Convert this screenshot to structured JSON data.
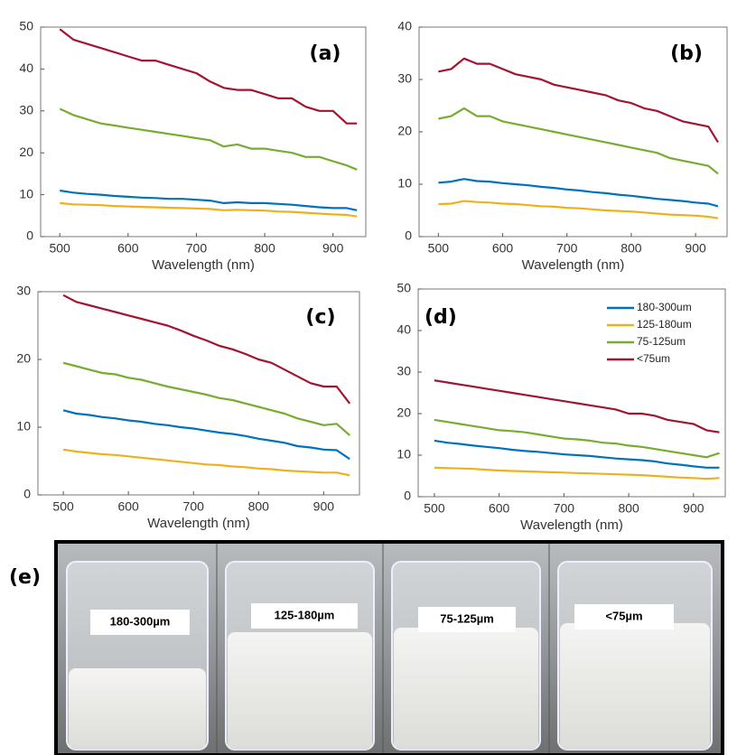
{
  "chart_data": [
    {
      "type": "line",
      "label": "(a)",
      "xlabel": "Wavelength (nm)",
      "x": [
        500,
        520,
        540,
        560,
        580,
        600,
        620,
        640,
        660,
        680,
        700,
        720,
        740,
        760,
        780,
        800,
        820,
        840,
        860,
        880,
        900,
        920,
        935
      ],
      "xlim": [
        472,
        948
      ],
      "xticks": [
        500,
        600,
        700,
        800,
        900
      ],
      "ylim": [
        0,
        50
      ],
      "yticks": [
        0,
        10,
        20,
        30,
        40,
        50
      ],
      "series": [
        {
          "color": "#0072bd",
          "values": [
            11,
            10.5,
            10.2,
            10,
            9.7,
            9.5,
            9.3,
            9.2,
            9,
            9,
            8.8,
            8.6,
            8,
            8.2,
            8,
            8,
            7.8,
            7.6,
            7.3,
            7,
            6.8,
            6.8,
            6.3
          ]
        },
        {
          "color": "#edb120",
          "values": [
            8,
            7.7,
            7.6,
            7.5,
            7.3,
            7.2,
            7.1,
            7,
            6.9,
            6.8,
            6.7,
            6.6,
            6.3,
            6.4,
            6.3,
            6.2,
            6,
            5.9,
            5.7,
            5.5,
            5.3,
            5.2,
            4.8
          ]
        },
        {
          "color": "#77ac30",
          "values": [
            30.5,
            29,
            28,
            27,
            26.5,
            26,
            25.5,
            25,
            24.5,
            24,
            23.5,
            23,
            21.5,
            22,
            21,
            21,
            20.5,
            20,
            19,
            19,
            18,
            17,
            16
          ]
        },
        {
          "color": "#a2142f",
          "values": [
            49.5,
            47,
            46,
            45,
            44,
            43,
            42,
            42,
            41,
            40,
            39,
            37,
            35.5,
            35,
            35,
            34,
            33,
            33,
            31,
            30,
            30,
            27,
            27
          ]
        }
      ]
    },
    {
      "type": "line",
      "label": "(b)",
      "xlabel": "Wavelength (nm)",
      "x": [
        500,
        520,
        540,
        560,
        580,
        600,
        620,
        640,
        660,
        680,
        700,
        720,
        740,
        760,
        780,
        800,
        820,
        840,
        860,
        880,
        900,
        920,
        935
      ],
      "xlim": [
        470,
        949
      ],
      "xticks": [
        500,
        600,
        700,
        800,
        900
      ],
      "ylim": [
        0,
        40
      ],
      "yticks": [
        0,
        10,
        20,
        30,
        40
      ],
      "series": [
        {
          "color": "#0072bd",
          "values": [
            10.3,
            10.5,
            11,
            10.6,
            10.5,
            10.2,
            10,
            9.8,
            9.5,
            9.3,
            9,
            8.8,
            8.5,
            8.3,
            8,
            7.8,
            7.5,
            7.2,
            7,
            6.8,
            6.5,
            6.3,
            5.8
          ]
        },
        {
          "color": "#edb120",
          "values": [
            6.2,
            6.3,
            6.8,
            6.6,
            6.5,
            6.3,
            6.2,
            6,
            5.8,
            5.7,
            5.5,
            5.4,
            5.2,
            5,
            4.9,
            4.8,
            4.6,
            4.4,
            4.2,
            4.1,
            4,
            3.8,
            3.5
          ]
        },
        {
          "color": "#77ac30",
          "values": [
            22.5,
            23,
            24.5,
            23,
            23,
            22,
            21.5,
            21,
            20.5,
            20,
            19.5,
            19,
            18.5,
            18,
            17.5,
            17,
            16.5,
            16,
            15,
            14.5,
            14,
            13.5,
            12
          ]
        },
        {
          "color": "#a2142f",
          "values": [
            31.5,
            32,
            34,
            33,
            33,
            32,
            31,
            30.5,
            30,
            29,
            28.5,
            28,
            27.5,
            27,
            26,
            25.5,
            24.5,
            24,
            23,
            22,
            21.5,
            21,
            18
          ]
        }
      ]
    },
    {
      "type": "line",
      "label": "(c)",
      "xlabel": "Wavelength (nm)",
      "x": [
        500,
        520,
        540,
        560,
        580,
        600,
        620,
        640,
        660,
        680,
        700,
        720,
        740,
        760,
        780,
        800,
        820,
        840,
        860,
        880,
        900,
        920,
        940
      ],
      "xlim": [
        461,
        955
      ],
      "xticks": [
        500,
        600,
        700,
        800,
        900
      ],
      "ylim": [
        0,
        30
      ],
      "yticks": [
        0,
        10,
        20,
        30
      ],
      "series": [
        {
          "color": "#0072bd",
          "values": [
            12.5,
            12,
            11.8,
            11.5,
            11.3,
            11,
            10.8,
            10.5,
            10.3,
            10,
            9.8,
            9.5,
            9.2,
            9,
            8.7,
            8.3,
            8,
            7.7,
            7.2,
            7,
            6.7,
            6.6,
            5.3
          ]
        },
        {
          "color": "#edb120",
          "values": [
            6.7,
            6.4,
            6.2,
            6,
            5.9,
            5.7,
            5.5,
            5.3,
            5.1,
            4.9,
            4.7,
            4.5,
            4.4,
            4.2,
            4.1,
            3.9,
            3.8,
            3.6,
            3.5,
            3.4,
            3.3,
            3.3,
            2.9
          ]
        },
        {
          "color": "#77ac30",
          "values": [
            19.5,
            19,
            18.5,
            18,
            17.8,
            17.3,
            17,
            16.5,
            16,
            15.6,
            15.2,
            14.8,
            14.3,
            14,
            13.5,
            13,
            12.5,
            12,
            11.3,
            10.8,
            10.3,
            10.5,
            8.8
          ]
        },
        {
          "color": "#a2142f",
          "values": [
            29.5,
            28.5,
            28,
            27.5,
            27,
            26.5,
            26,
            25.5,
            25,
            24.3,
            23.5,
            22.8,
            22,
            21.5,
            20.8,
            20,
            19.5,
            18.5,
            17.5,
            16.5,
            16,
            16,
            13.5
          ]
        }
      ]
    },
    {
      "type": "line",
      "label": "(d)",
      "xlabel": "Wavelength (nm)",
      "legend": "upper right",
      "x": [
        500,
        520,
        540,
        560,
        580,
        600,
        620,
        640,
        660,
        680,
        700,
        720,
        740,
        760,
        780,
        800,
        820,
        840,
        860,
        880,
        900,
        920,
        940
      ],
      "xlim": [
        475,
        949
      ],
      "xticks": [
        500,
        600,
        700,
        800,
        900
      ],
      "ylim": [
        0,
        50
      ],
      "yticks": [
        0,
        10,
        20,
        30,
        40,
        50
      ],
      "series": [
        {
          "name": "180-300um",
          "color": "#0072bd",
          "values": [
            13.5,
            13,
            12.7,
            12.3,
            12,
            11.7,
            11.3,
            11,
            10.8,
            10.5,
            10.2,
            10,
            9.8,
            9.5,
            9.2,
            9,
            8.8,
            8.5,
            8,
            7.7,
            7.3,
            7,
            7
          ]
        },
        {
          "name": "125-180um",
          "color": "#edb120",
          "values": [
            7,
            6.9,
            6.8,
            6.7,
            6.5,
            6.3,
            6.2,
            6.1,
            6,
            5.9,
            5.8,
            5.7,
            5.6,
            5.5,
            5.4,
            5.3,
            5.2,
            5,
            4.8,
            4.6,
            4.5,
            4.3,
            4.5
          ]
        },
        {
          "name": "75-125um",
          "color": "#77ac30",
          "values": [
            18.5,
            18,
            17.5,
            17,
            16.5,
            16,
            15.8,
            15.5,
            15,
            14.5,
            14,
            13.8,
            13.5,
            13,
            12.8,
            12.3,
            12,
            11.5,
            11,
            10.5,
            10,
            9.5,
            10.5
          ]
        },
        {
          "name": "<75um",
          "color": "#a2142f",
          "values": [
            28,
            27.5,
            27,
            26.5,
            26,
            25.5,
            25,
            24.5,
            24,
            23.5,
            23,
            22.5,
            22,
            21.5,
            21,
            20,
            20,
            19.5,
            18.5,
            18,
            17.5,
            16,
            15.5
          ]
        }
      ]
    }
  ],
  "photo": {
    "label": "(e)",
    "samples": [
      "180-300µm",
      "125-180µm",
      "75-125µm",
      "<75µm"
    ]
  }
}
